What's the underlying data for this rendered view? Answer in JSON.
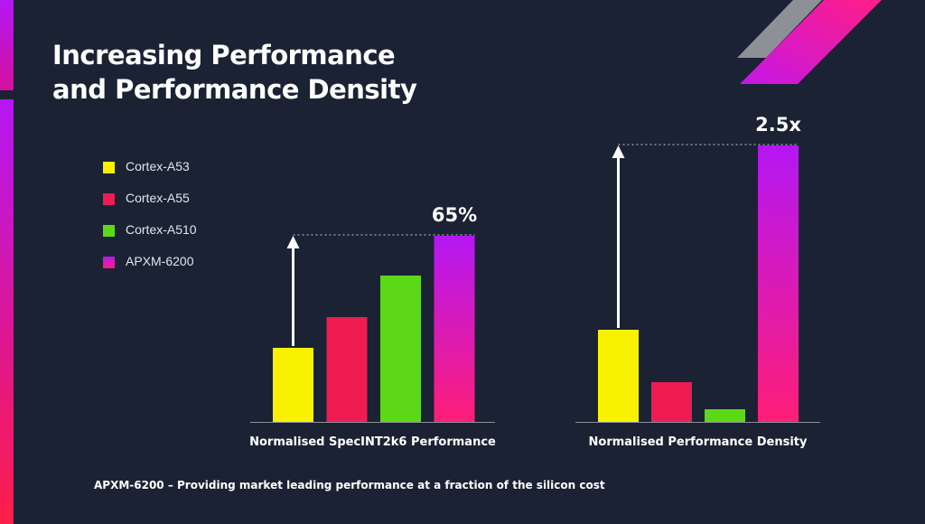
{
  "slide": {
    "title_line1": "Increasing Performance",
    "title_line2": "and Performance Density",
    "footer": "APXM-6200 – Providing market leading performance at a fraction of the silicon cost"
  },
  "colors": {
    "background": "#1a2234",
    "axis": "#8a8f99",
    "cortex_a53": "#f8f200",
    "cortex_a55": "#ee1c52",
    "cortex_a510": "#5dd816",
    "apxm_top": "#b417f4",
    "apxm_bottom": "#ff1e78",
    "arrow": "#ffffff"
  },
  "chart_data": [
    {
      "type": "bar",
      "title": "Normalised SpecINT2k6 Performance",
      "categories": [
        "Cortex-A53",
        "Cortex-A55",
        "Cortex-A510",
        "APXM-6200"
      ],
      "values": [
        41,
        58,
        81,
        103
      ],
      "ylim": [
        0,
        150
      ],
      "annotation": "65%",
      "legend": "left",
      "grid": false
    },
    {
      "type": "bar",
      "title": "Normalised Performance Density",
      "categories": [
        "Cortex-A53",
        "Cortex-A55",
        "Cortex-A510",
        "APXM-6200"
      ],
      "values": [
        51,
        22,
        7,
        153
      ],
      "ylim": [
        0,
        150
      ],
      "annotation": "2.5x",
      "legend": "left",
      "grid": false
    }
  ],
  "legend": [
    {
      "label": "Cortex-A53",
      "color_key": "cortex_a53"
    },
    {
      "label": "Cortex-A55",
      "color_key": "cortex_a55"
    },
    {
      "label": "Cortex-A510",
      "color_key": "cortex_a510"
    },
    {
      "label": "APXM-6200",
      "color_key": "apxm_top"
    }
  ]
}
